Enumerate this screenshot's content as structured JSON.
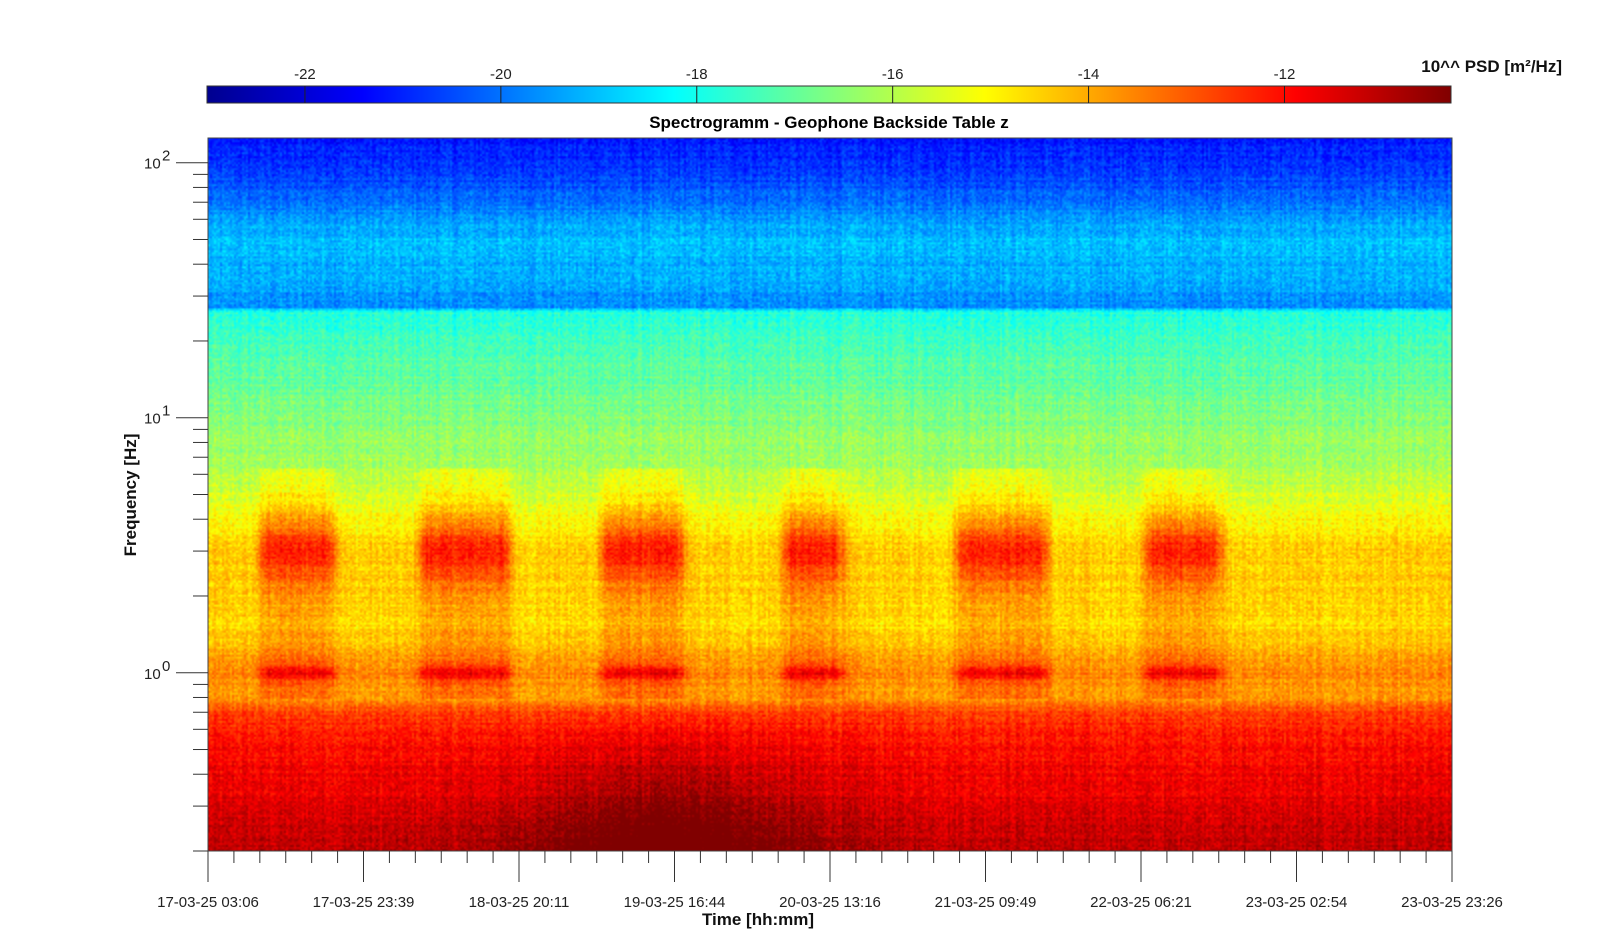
{
  "chart_data": {
    "type": "heatmap",
    "title": "Spectrogramm - Geophone Backside Table z",
    "xlabel": "Time [hh:mm]",
    "ylabel": "Frequency [Hz]",
    "yscale": "log",
    "ylim": [
      0.2,
      125
    ],
    "x_ticks": [
      "17-03-25 03:06",
      "17-03-25 23:39",
      "18-03-25 20:11",
      "19-03-25 16:44",
      "20-03-25 13:16",
      "21-03-25 09:49",
      "22-03-25 06:21",
      "23-03-25 02:54",
      "23-03-25 23:26"
    ],
    "y_ticks": [
      {
        "value": 1,
        "base": "10",
        "exp": "0"
      },
      {
        "value": 10,
        "base": "10",
        "exp": "1"
      },
      {
        "value": 100,
        "base": "10",
        "exp": "2"
      }
    ],
    "colorbar": {
      "label": "10^^ PSD [m²/Hz]",
      "ticks": [
        "-22",
        "-20",
        "-18",
        "-16",
        "-14",
        "-12"
      ],
      "tick_values": [
        -22,
        -20,
        -18,
        -16,
        -14,
        -12
      ],
      "range": [
        -23,
        -10.3
      ],
      "colormap": "jet"
    },
    "profile_log10_psd": [
      {
        "f": 0.2,
        "v": -11.0
      },
      {
        "f": 0.3,
        "v": -11.5
      },
      {
        "f": 0.5,
        "v": -12.0
      },
      {
        "f": 0.7,
        "v": -12.6
      },
      {
        "f": 0.8,
        "v": -14.0
      },
      {
        "f": 1.0,
        "v": -13.5
      },
      {
        "f": 1.5,
        "v": -14.6
      },
      {
        "f": 3.0,
        "v": -14.4
      },
      {
        "f": 6.0,
        "v": -16.0
      },
      {
        "f": 10.0,
        "v": -16.6
      },
      {
        "f": 20.0,
        "v": -17.4
      },
      {
        "f": 26.0,
        "v": -17.8
      },
      {
        "f": 27.0,
        "v": -19.6
      },
      {
        "f": 50.0,
        "v": -19.0
      },
      {
        "f": 80.0,
        "v": -20.4
      },
      {
        "f": 125.0,
        "v": -21.2
      }
    ],
    "daytime_activity_bands": [
      {
        "start": "17-03-25 11:00",
        "end": "17-03-25 19:00"
      },
      {
        "start": "18-03-25 08:00",
        "end": "18-03-25 18:00"
      },
      {
        "start": "19-03-25 08:00",
        "end": "19-03-25 17:00"
      },
      {
        "start": "20-03-25 08:00",
        "end": "20-03-25 14:00"
      },
      {
        "start": "21-03-25 07:00",
        "end": "21-03-25 17:00"
      },
      {
        "start": "22-03-25 08:00",
        "end": "22-03-25 16:00"
      }
    ]
  }
}
